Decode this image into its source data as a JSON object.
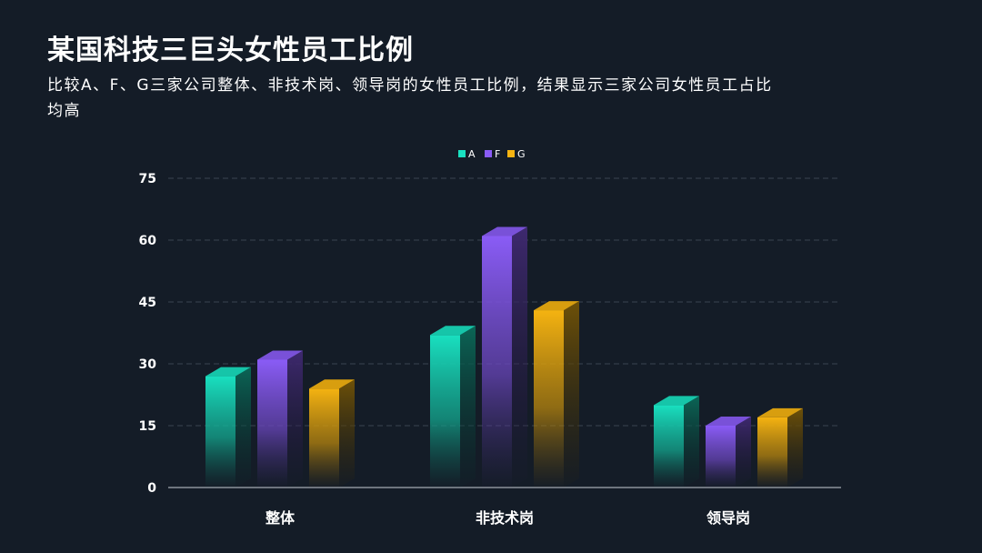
{
  "header": {
    "title": "某国科技三巨头女性员工比例",
    "subtitle": "比较A、F、G三家公司整体、非技术岗、领导岗的女性员工比例，结果显示三家公司女性员工占比均高"
  },
  "chart_data": {
    "type": "bar",
    "title": "",
    "xlabel": "",
    "ylabel": "",
    "categories": [
      "整体",
      "非技术岗",
      "领导岗"
    ],
    "series": [
      {
        "name": "A",
        "color": "#19e0c0",
        "values": [
          27,
          37,
          20
        ]
      },
      {
        "name": "F",
        "color": "#8a5cf6",
        "values": [
          31,
          61,
          15
        ]
      },
      {
        "name": "G",
        "color": "#f5b311",
        "values": [
          24,
          43,
          17
        ]
      }
    ],
    "ylim": [
      0,
      75
    ],
    "yticks": [
      0,
      15,
      30,
      45,
      60,
      75
    ],
    "grid": true,
    "legend": "top-center"
  }
}
